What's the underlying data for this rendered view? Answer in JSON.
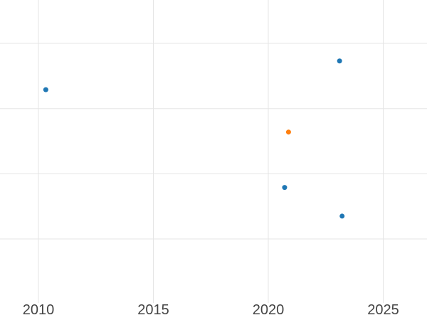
{
  "chart_data": {
    "type": "scatter",
    "title": "",
    "background_color": "#ffffff",
    "grid": {
      "visible": true,
      "color": "#e5e5e5",
      "stroke_width_px": 1
    },
    "x_axis": {
      "tick_labels": [
        "2010",
        "2015",
        "2020",
        "2025"
      ],
      "tick_values": [
        2010,
        2015,
        2020,
        2025
      ],
      "visible_range": [
        2008.328,
        2026.904
      ],
      "label_color": "#444444",
      "label_font_size_px": 20
    },
    "y_axis": {
      "tick_labels": [],
      "tick_labels_visible": false,
      "note": "y-axis tick labels are cropped out of the visible screenshot; y values are measured in unlabeled gridline intervals above the lowest visible gridline",
      "gridline_values": [
        0,
        1,
        2,
        3
      ],
      "visible_range": [
        -0.982,
        3.666
      ]
    },
    "series": [
      {
        "name": "blue",
        "color": "#1f77b4",
        "marker_diameter_px": 7,
        "points": [
          {
            "x": 2010.32,
            "y": 2.29
          },
          {
            "x": 2023.1,
            "y": 2.73
          },
          {
            "x": 2020.71,
            "y": 0.79
          },
          {
            "x": 2023.21,
            "y": 0.35
          }
        ]
      },
      {
        "name": "orange",
        "color": "#ff7f0e",
        "marker_diameter_px": 7,
        "points": [
          {
            "x": 2020.88,
            "y": 1.64
          }
        ]
      }
    ]
  }
}
